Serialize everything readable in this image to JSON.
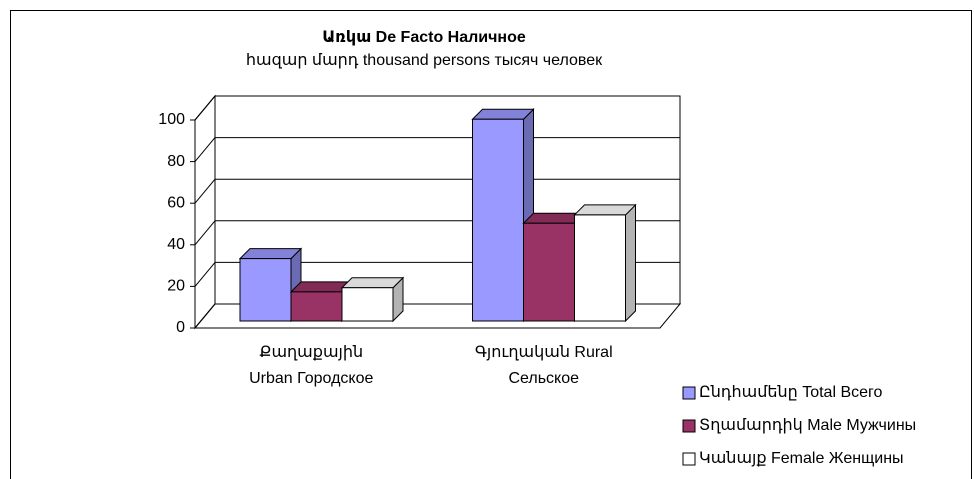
{
  "chart_data": {
    "type": "bar3d",
    "title": "Առկա De Facto  Наличное",
    "subtitle": "հազար մարդ thousand persons тысяч человек",
    "categories": [
      "Քաղաքային Urban Городское",
      "Գյուղական Rural Сельское"
    ],
    "series": [
      {
        "name": "Ընդհամենը Total Всего",
        "color": "#9999ff",
        "values": [
          30,
          97
        ]
      },
      {
        "name": " Տղամարդիկ Male Мужчины",
        "color": "#993366",
        "values": [
          14,
          47
        ]
      },
      {
        "name": "Կանայք Female Женщины",
        "color": "#ffffff",
        "values": [
          16,
          51
        ]
      }
    ],
    "ylim": [
      0,
      100
    ],
    "yticks": [
      0,
      20,
      40,
      60,
      80,
      100
    ],
    "grid": true,
    "legend": "bottom-right"
  }
}
